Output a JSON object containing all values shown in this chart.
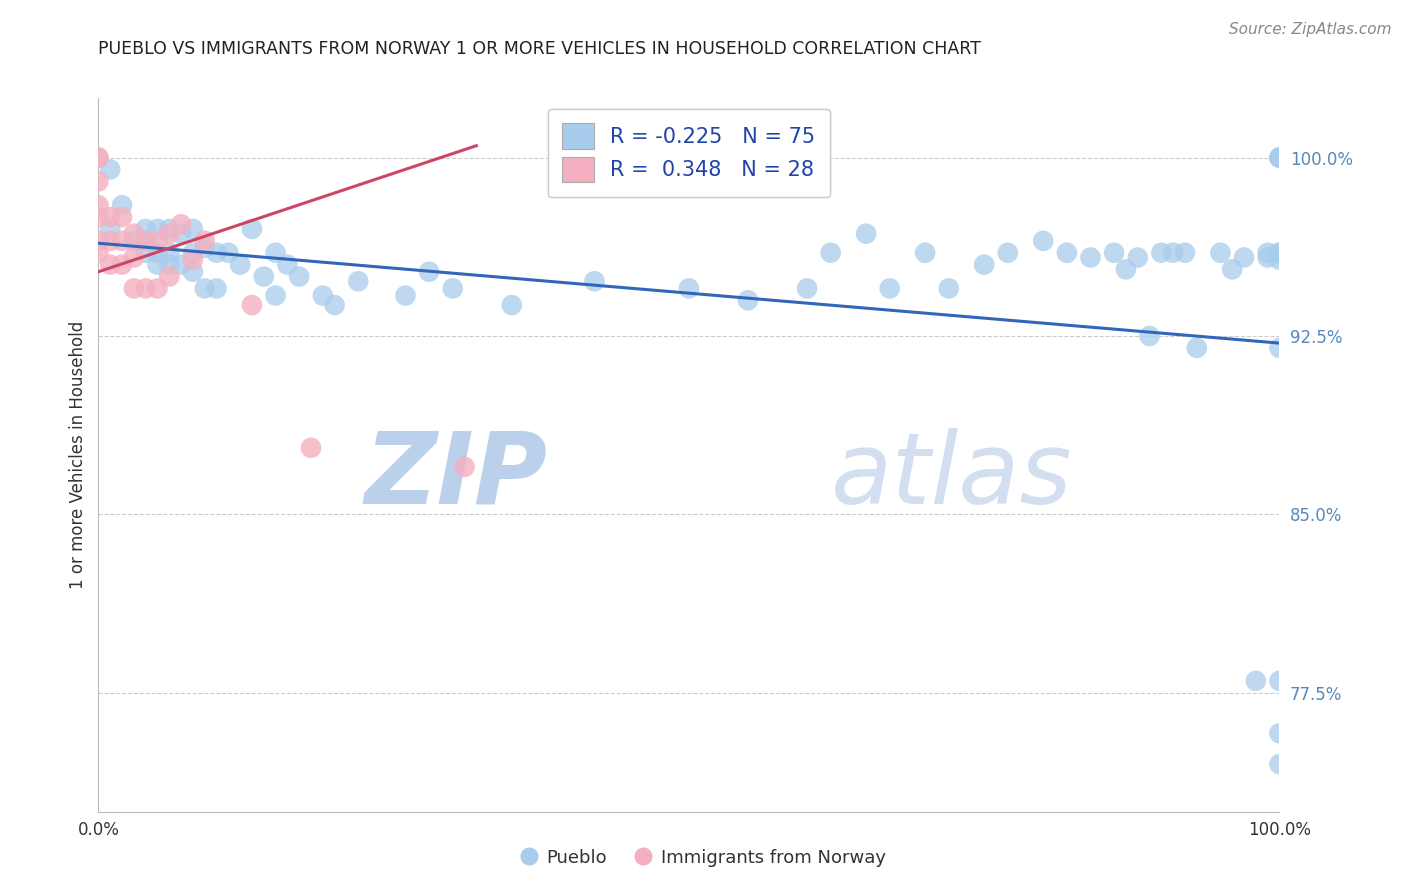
{
  "title": "PUEBLO VS IMMIGRANTS FROM NORWAY 1 OR MORE VEHICLES IN HOUSEHOLD CORRELATION CHART",
  "source": "Source: ZipAtlas.com",
  "ylabel": "1 or more Vehicles in Household",
  "xlim": [
    0.0,
    1.0
  ],
  "ylim": [
    0.725,
    1.025
  ],
  "yticks": [
    0.775,
    0.85,
    0.925,
    1.0
  ],
  "ytick_labels": [
    "77.5%",
    "85.0%",
    "92.5%",
    "100.0%"
  ],
  "xticks": [
    0.0,
    0.25,
    0.5,
    0.75,
    1.0
  ],
  "xtick_labels": [
    "0.0%",
    "",
    "",
    "",
    "100.0%"
  ],
  "legend_r_blue": "-0.225",
  "legend_n_blue": "75",
  "legend_r_pink": "0.348",
  "legend_n_pink": "28",
  "bottom_legend_blue": "Pueblo",
  "bottom_legend_pink": "Immigrants from Norway",
  "blue_color": "#a8ccec",
  "pink_color": "#f4b0c0",
  "blue_edge_color": "#a8ccec",
  "pink_edge_color": "#f4b0c0",
  "blue_line_color": "#3366bb",
  "pink_line_color": "#cc4466",
  "blue_trend_x0": 0.0,
  "blue_trend_x1": 1.0,
  "blue_trend_y0": 0.964,
  "blue_trend_y1": 0.922,
  "pink_trend_x0": 0.0,
  "pink_trend_x1": 0.32,
  "pink_trend_y0": 0.952,
  "pink_trend_y1": 1.005,
  "blue_x": [
    0.01,
    0.01,
    0.02,
    0.03,
    0.04,
    0.04,
    0.04,
    0.05,
    0.05,
    0.05,
    0.06,
    0.06,
    0.06,
    0.07,
    0.07,
    0.08,
    0.08,
    0.08,
    0.09,
    0.09,
    0.1,
    0.1,
    0.11,
    0.12,
    0.13,
    0.14,
    0.15,
    0.15,
    0.16,
    0.17,
    0.19,
    0.2,
    0.22,
    0.26,
    0.28,
    0.3,
    0.35,
    0.42,
    0.5,
    0.55,
    0.6,
    0.62,
    0.65,
    0.67,
    0.7,
    0.72,
    0.75,
    0.77,
    0.8,
    0.82,
    0.84,
    0.86,
    0.87,
    0.88,
    0.89,
    0.9,
    0.91,
    0.92,
    0.93,
    0.95,
    0.96,
    0.97,
    0.98,
    0.99,
    0.99,
    1.0,
    1.0,
    1.0,
    1.0,
    1.0,
    1.0,
    1.0,
    1.0,
    1.0,
    1.0
  ],
  "blue_y": [
    0.995,
    0.97,
    0.98,
    0.965,
    0.97,
    0.965,
    0.96,
    0.97,
    0.96,
    0.955,
    0.97,
    0.96,
    0.955,
    0.968,
    0.955,
    0.97,
    0.96,
    0.952,
    0.962,
    0.945,
    0.96,
    0.945,
    0.96,
    0.955,
    0.97,
    0.95,
    0.96,
    0.942,
    0.955,
    0.95,
    0.942,
    0.938,
    0.948,
    0.942,
    0.952,
    0.945,
    0.938,
    0.948,
    0.945,
    0.94,
    0.945,
    0.96,
    0.968,
    0.945,
    0.96,
    0.945,
    0.955,
    0.96,
    0.965,
    0.96,
    0.958,
    0.96,
    0.953,
    0.958,
    0.925,
    0.96,
    0.96,
    0.96,
    0.92,
    0.96,
    0.953,
    0.958,
    0.78,
    0.958,
    0.96,
    1.0,
    1.0,
    1.0,
    0.78,
    0.758,
    0.957,
    0.745,
    0.96,
    0.96,
    0.92
  ],
  "pink_x": [
    0.0,
    0.0,
    0.0,
    0.0,
    0.0,
    0.0,
    0.0,
    0.01,
    0.01,
    0.01,
    0.02,
    0.02,
    0.02,
    0.03,
    0.03,
    0.03,
    0.04,
    0.04,
    0.05,
    0.05,
    0.06,
    0.06,
    0.07,
    0.08,
    0.09,
    0.13,
    0.18,
    0.31
  ],
  "pink_y": [
    1.0,
    1.0,
    0.99,
    0.98,
    0.975,
    0.965,
    0.96,
    0.975,
    0.965,
    0.955,
    0.975,
    0.965,
    0.955,
    0.968,
    0.958,
    0.945,
    0.965,
    0.945,
    0.965,
    0.945,
    0.968,
    0.95,
    0.972,
    0.957,
    0.965,
    0.938,
    0.878,
    0.87
  ],
  "watermark_zip": "ZIP",
  "watermark_atlas": "atlas",
  "watermark_color": "#d0dff0",
  "background_color": "#ffffff",
  "grid_color": "#cccccc",
  "grid_linestyle": "--",
  "grid_linewidth": 0.8
}
